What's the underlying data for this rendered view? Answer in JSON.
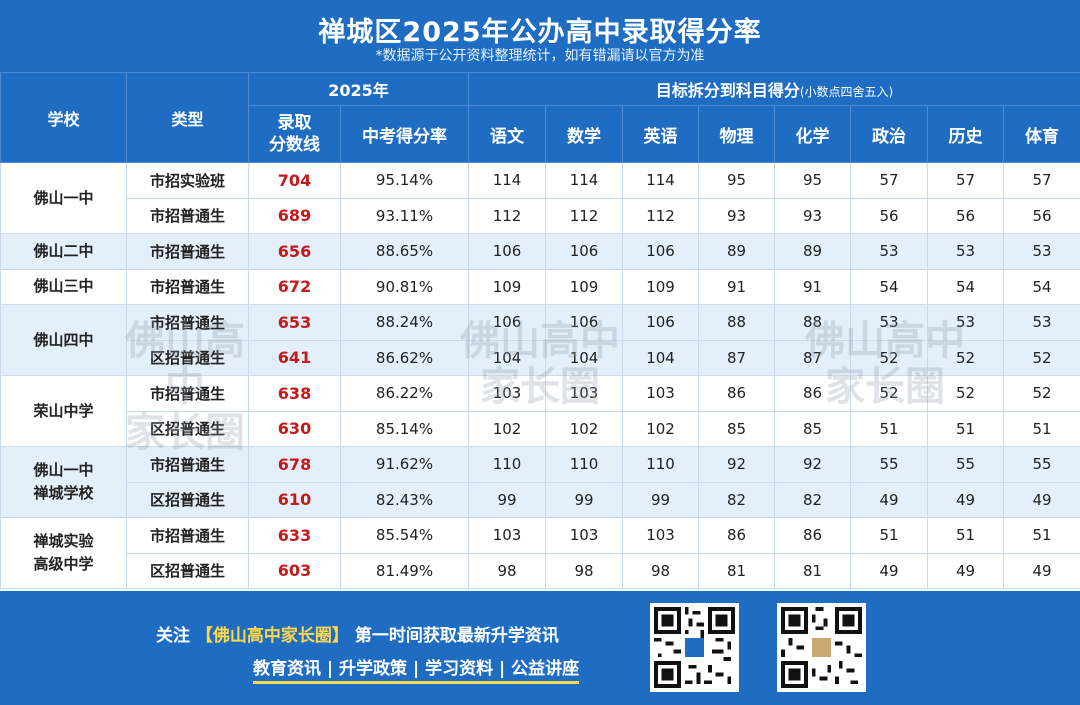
{
  "header": {
    "title": "禅城区2025年公办高中录取得分率",
    "subtitle": "*数据源于公开资料整理统计，如有错漏请以官方为准"
  },
  "table": {
    "col_school": "学校",
    "col_type": "类型",
    "year_group": "2025年",
    "col_score_line1": "录取",
    "col_score_line2": "分数线",
    "col_rate": "中考得分率",
    "subject_group": "目标拆分到科目得分",
    "subject_group_note": "(小数点四舍五入)",
    "subjects": [
      "语文",
      "数学",
      "英语",
      "物理",
      "化学",
      "政治",
      "历史",
      "体育"
    ],
    "rows": [
      {
        "school": "佛山一中",
        "type": "市招实验班",
        "score": "704",
        "rate": "95.14%",
        "subjects": [
          "114",
          "114",
          "114",
          "95",
          "95",
          "57",
          "57",
          "57"
        ]
      },
      {
        "school": "",
        "type": "市招普通生",
        "score": "689",
        "rate": "93.11%",
        "subjects": [
          "112",
          "112",
          "112",
          "93",
          "93",
          "56",
          "56",
          "56"
        ]
      },
      {
        "school": "佛山二中",
        "type": "市招普通生",
        "score": "656",
        "rate": "88.65%",
        "subjects": [
          "106",
          "106",
          "106",
          "89",
          "89",
          "53",
          "53",
          "53"
        ]
      },
      {
        "school": "佛山三中",
        "type": "市招普通生",
        "score": "672",
        "rate": "90.81%",
        "subjects": [
          "109",
          "109",
          "109",
          "91",
          "91",
          "54",
          "54",
          "54"
        ]
      },
      {
        "school": "佛山四中",
        "type": "市招普通生",
        "score": "653",
        "rate": "88.24%",
        "subjects": [
          "106",
          "106",
          "106",
          "88",
          "88",
          "53",
          "53",
          "53"
        ]
      },
      {
        "school": "",
        "type": "区招普通生",
        "score": "641",
        "rate": "86.62%",
        "subjects": [
          "104",
          "104",
          "104",
          "87",
          "87",
          "52",
          "52",
          "52"
        ]
      },
      {
        "school": "荣山中学",
        "type": "市招普通生",
        "score": "638",
        "rate": "86.22%",
        "subjects": [
          "103",
          "103",
          "103",
          "86",
          "86",
          "52",
          "52",
          "52"
        ]
      },
      {
        "school": "",
        "type": "区招普通生",
        "score": "630",
        "rate": "85.14%",
        "subjects": [
          "102",
          "102",
          "102",
          "85",
          "85",
          "51",
          "51",
          "51"
        ]
      },
      {
        "school": "佛山一中禅城学校",
        "type": "市招普通生",
        "score": "678",
        "rate": "91.62%",
        "subjects": [
          "110",
          "110",
          "110",
          "92",
          "92",
          "55",
          "55",
          "55"
        ]
      },
      {
        "school": "",
        "type": "区招普通生",
        "score": "610",
        "rate": "82.43%",
        "subjects": [
          "99",
          "99",
          "99",
          "82",
          "82",
          "49",
          "49",
          "49"
        ]
      },
      {
        "school": "禅城实验高级中学",
        "type": "市招普通生",
        "score": "633",
        "rate": "85.54%",
        "subjects": [
          "103",
          "103",
          "103",
          "86",
          "86",
          "51",
          "51",
          "51"
        ]
      },
      {
        "school": "",
        "type": "区招普通生",
        "score": "603",
        "rate": "81.49%",
        "subjects": [
          "98",
          "98",
          "98",
          "81",
          "81",
          "49",
          "49",
          "49"
        ]
      }
    ],
    "school_labels": {
      "s1": "佛山一中",
      "s2": "佛山二中",
      "s3": "佛山三中",
      "s4": "佛山四中",
      "s5": "荣山中学",
      "s6_line1": "佛山一中",
      "s6_line2": "禅城学校",
      "s7_line1": "禅城实验",
      "s7_line2": "高级中学"
    }
  },
  "watermark": {
    "line1": "佛山高中",
    "line2": "家长圈"
  },
  "footer": {
    "prefix": "关注",
    "brand": "【佛山高中家长圈】",
    "suffix": "第一时间获取最新升学资讯",
    "tagline": "教育资讯 | 升学政策 | 学习资料 | 公益讲座"
  },
  "colors": {
    "header_blue": "#1f6dc2",
    "score_red": "#c41a1a",
    "band": "#e3effb",
    "highlight": "#ffd84a"
  }
}
